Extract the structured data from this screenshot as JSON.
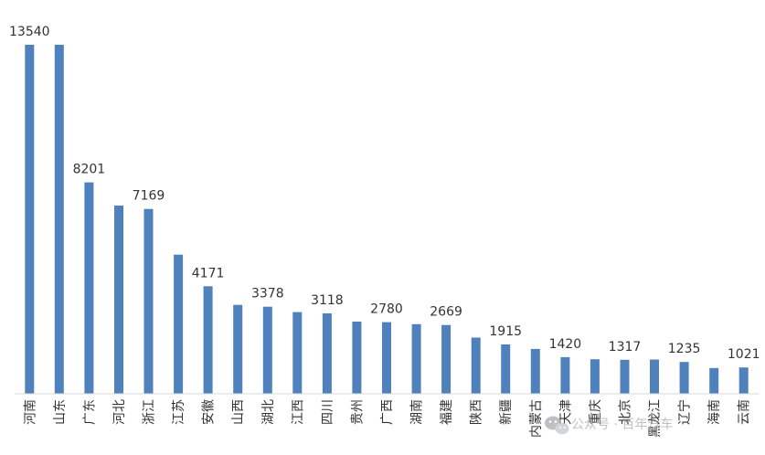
{
  "chart_data": {
    "type": "bar",
    "title": "",
    "xlabel": "",
    "ylabel": "",
    "ylim": [
      0,
      14500
    ],
    "grid": false,
    "legend": "none",
    "bar_color": "#4f81bd",
    "categories": [
      "河南",
      "山东",
      "广东",
      "河北",
      "浙江",
      "江苏",
      "安徽",
      "山西",
      "湖北",
      "江西",
      "四川",
      "贵州",
      "广西",
      "湖南",
      "福建",
      "陕西",
      "新疆",
      "内蒙古",
      "天津",
      "重庆",
      "北京",
      "黑龙江",
      "辽宁",
      "海南",
      "云南"
    ],
    "values": [
      13540,
      13540,
      8201,
      7300,
      7169,
      5400,
      4171,
      3450,
      3378,
      3170,
      3118,
      2800,
      2780,
      2700,
      2669,
      2180,
      1915,
      1740,
      1420,
      1340,
      1317,
      1330,
      1235,
      1000,
      1021
    ],
    "data_labels": [
      {
        "index": 0,
        "text": "13540"
      },
      {
        "index": 2,
        "text": "8201"
      },
      {
        "index": 4,
        "text": "7169"
      },
      {
        "index": 6,
        "text": "4171"
      },
      {
        "index": 8,
        "text": "3378"
      },
      {
        "index": 10,
        "text": "3118"
      },
      {
        "index": 12,
        "text": "2780"
      },
      {
        "index": 14,
        "text": "2669"
      },
      {
        "index": 16,
        "text": "1915"
      },
      {
        "index": 18,
        "text": "1420"
      },
      {
        "index": 20,
        "text": "1317"
      },
      {
        "index": 22,
        "text": "1235"
      },
      {
        "index": 24,
        "text": "1021"
      }
    ]
  },
  "watermark": {
    "text": "公众号 · 百年汽车",
    "icon": "wechat-icon"
  }
}
